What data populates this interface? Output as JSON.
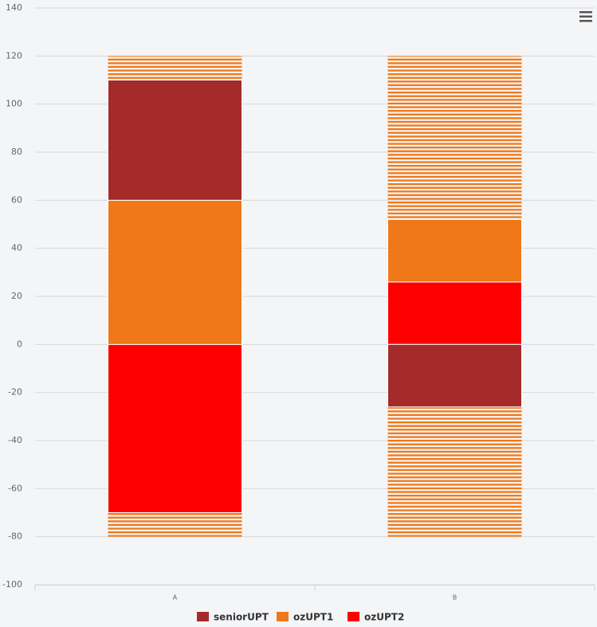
{
  "chart_data": {
    "type": "stacked_bar",
    "categories": [
      "A",
      "B"
    ],
    "series": [
      {
        "name": "ozUPT2",
        "color": "#ff0000",
        "values": [
          -70,
          26
        ]
      },
      {
        "name": "ozUPT1",
        "color": "#f07818",
        "values": [
          60,
          26
        ]
      },
      {
        "name": "seniorUPT",
        "color": "#a52a2a",
        "values": [
          50,
          -26
        ]
      }
    ],
    "legend_order": [
      2,
      1,
      0
    ],
    "background_bars": {
      "low": [
        -80,
        -80
      ],
      "high": [
        120,
        120
      ],
      "color": "#f07818"
    },
    "ylim": [
      -100,
      140
    ],
    "yticks": [
      -100,
      -80,
      -60,
      -40,
      -20,
      0,
      20,
      40,
      60,
      80,
      100,
      120,
      140
    ],
    "grid": true
  }
}
